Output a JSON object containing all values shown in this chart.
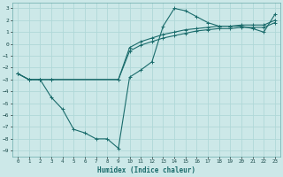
{
  "xlabel": "Humidex (Indice chaleur)",
  "xlim": [
    -0.5,
    23.5
  ],
  "ylim": [
    -9.5,
    3.5
  ],
  "yticks": [
    3,
    2,
    1,
    0,
    -1,
    -2,
    -3,
    -4,
    -5,
    -6,
    -7,
    -8,
    -9
  ],
  "xticks": [
    0,
    1,
    2,
    3,
    4,
    5,
    6,
    7,
    8,
    9,
    10,
    11,
    12,
    13,
    14,
    15,
    16,
    17,
    18,
    19,
    20,
    21,
    22,
    23
  ],
  "bg_color": "#cce8e8",
  "line_color": "#1a6b6b",
  "grid_color": "#b0d8d8",
  "line1_x": [
    0,
    1,
    2,
    3,
    4,
    5,
    6,
    7,
    8,
    9,
    10,
    11,
    12,
    13,
    14,
    15,
    16,
    17,
    18,
    19,
    20,
    21,
    22,
    23
  ],
  "line1_y": [
    -2.5,
    -3.0,
    -3.0,
    -4.5,
    -5.5,
    -7.2,
    -7.5,
    -8.0,
    -8.0,
    -8.8,
    -2.8,
    -2.2,
    -1.5,
    1.5,
    3.0,
    2.8,
    2.3,
    1.8,
    1.5,
    1.5,
    1.5,
    1.3,
    1.0,
    2.5
  ],
  "line2_x": [
    0,
    1,
    2,
    3,
    9,
    10,
    11,
    12,
    13,
    14,
    15,
    16,
    17,
    18,
    19,
    20,
    21,
    22,
    23
  ],
  "line2_y": [
    -2.5,
    -3.0,
    -3.0,
    -3.0,
    -3.0,
    -0.3,
    0.2,
    0.5,
    0.8,
    1.0,
    1.2,
    1.3,
    1.4,
    1.5,
    1.5,
    1.6,
    1.6,
    1.6,
    2.0
  ],
  "line3_x": [
    0,
    1,
    2,
    3,
    9,
    10,
    11,
    12,
    13,
    14,
    15,
    16,
    17,
    18,
    19,
    20,
    21,
    22,
    23
  ],
  "line3_y": [
    -2.5,
    -3.0,
    -3.0,
    -3.0,
    -3.0,
    -0.6,
    -0.1,
    0.2,
    0.5,
    0.7,
    0.9,
    1.1,
    1.2,
    1.3,
    1.3,
    1.4,
    1.4,
    1.4,
    1.8
  ]
}
